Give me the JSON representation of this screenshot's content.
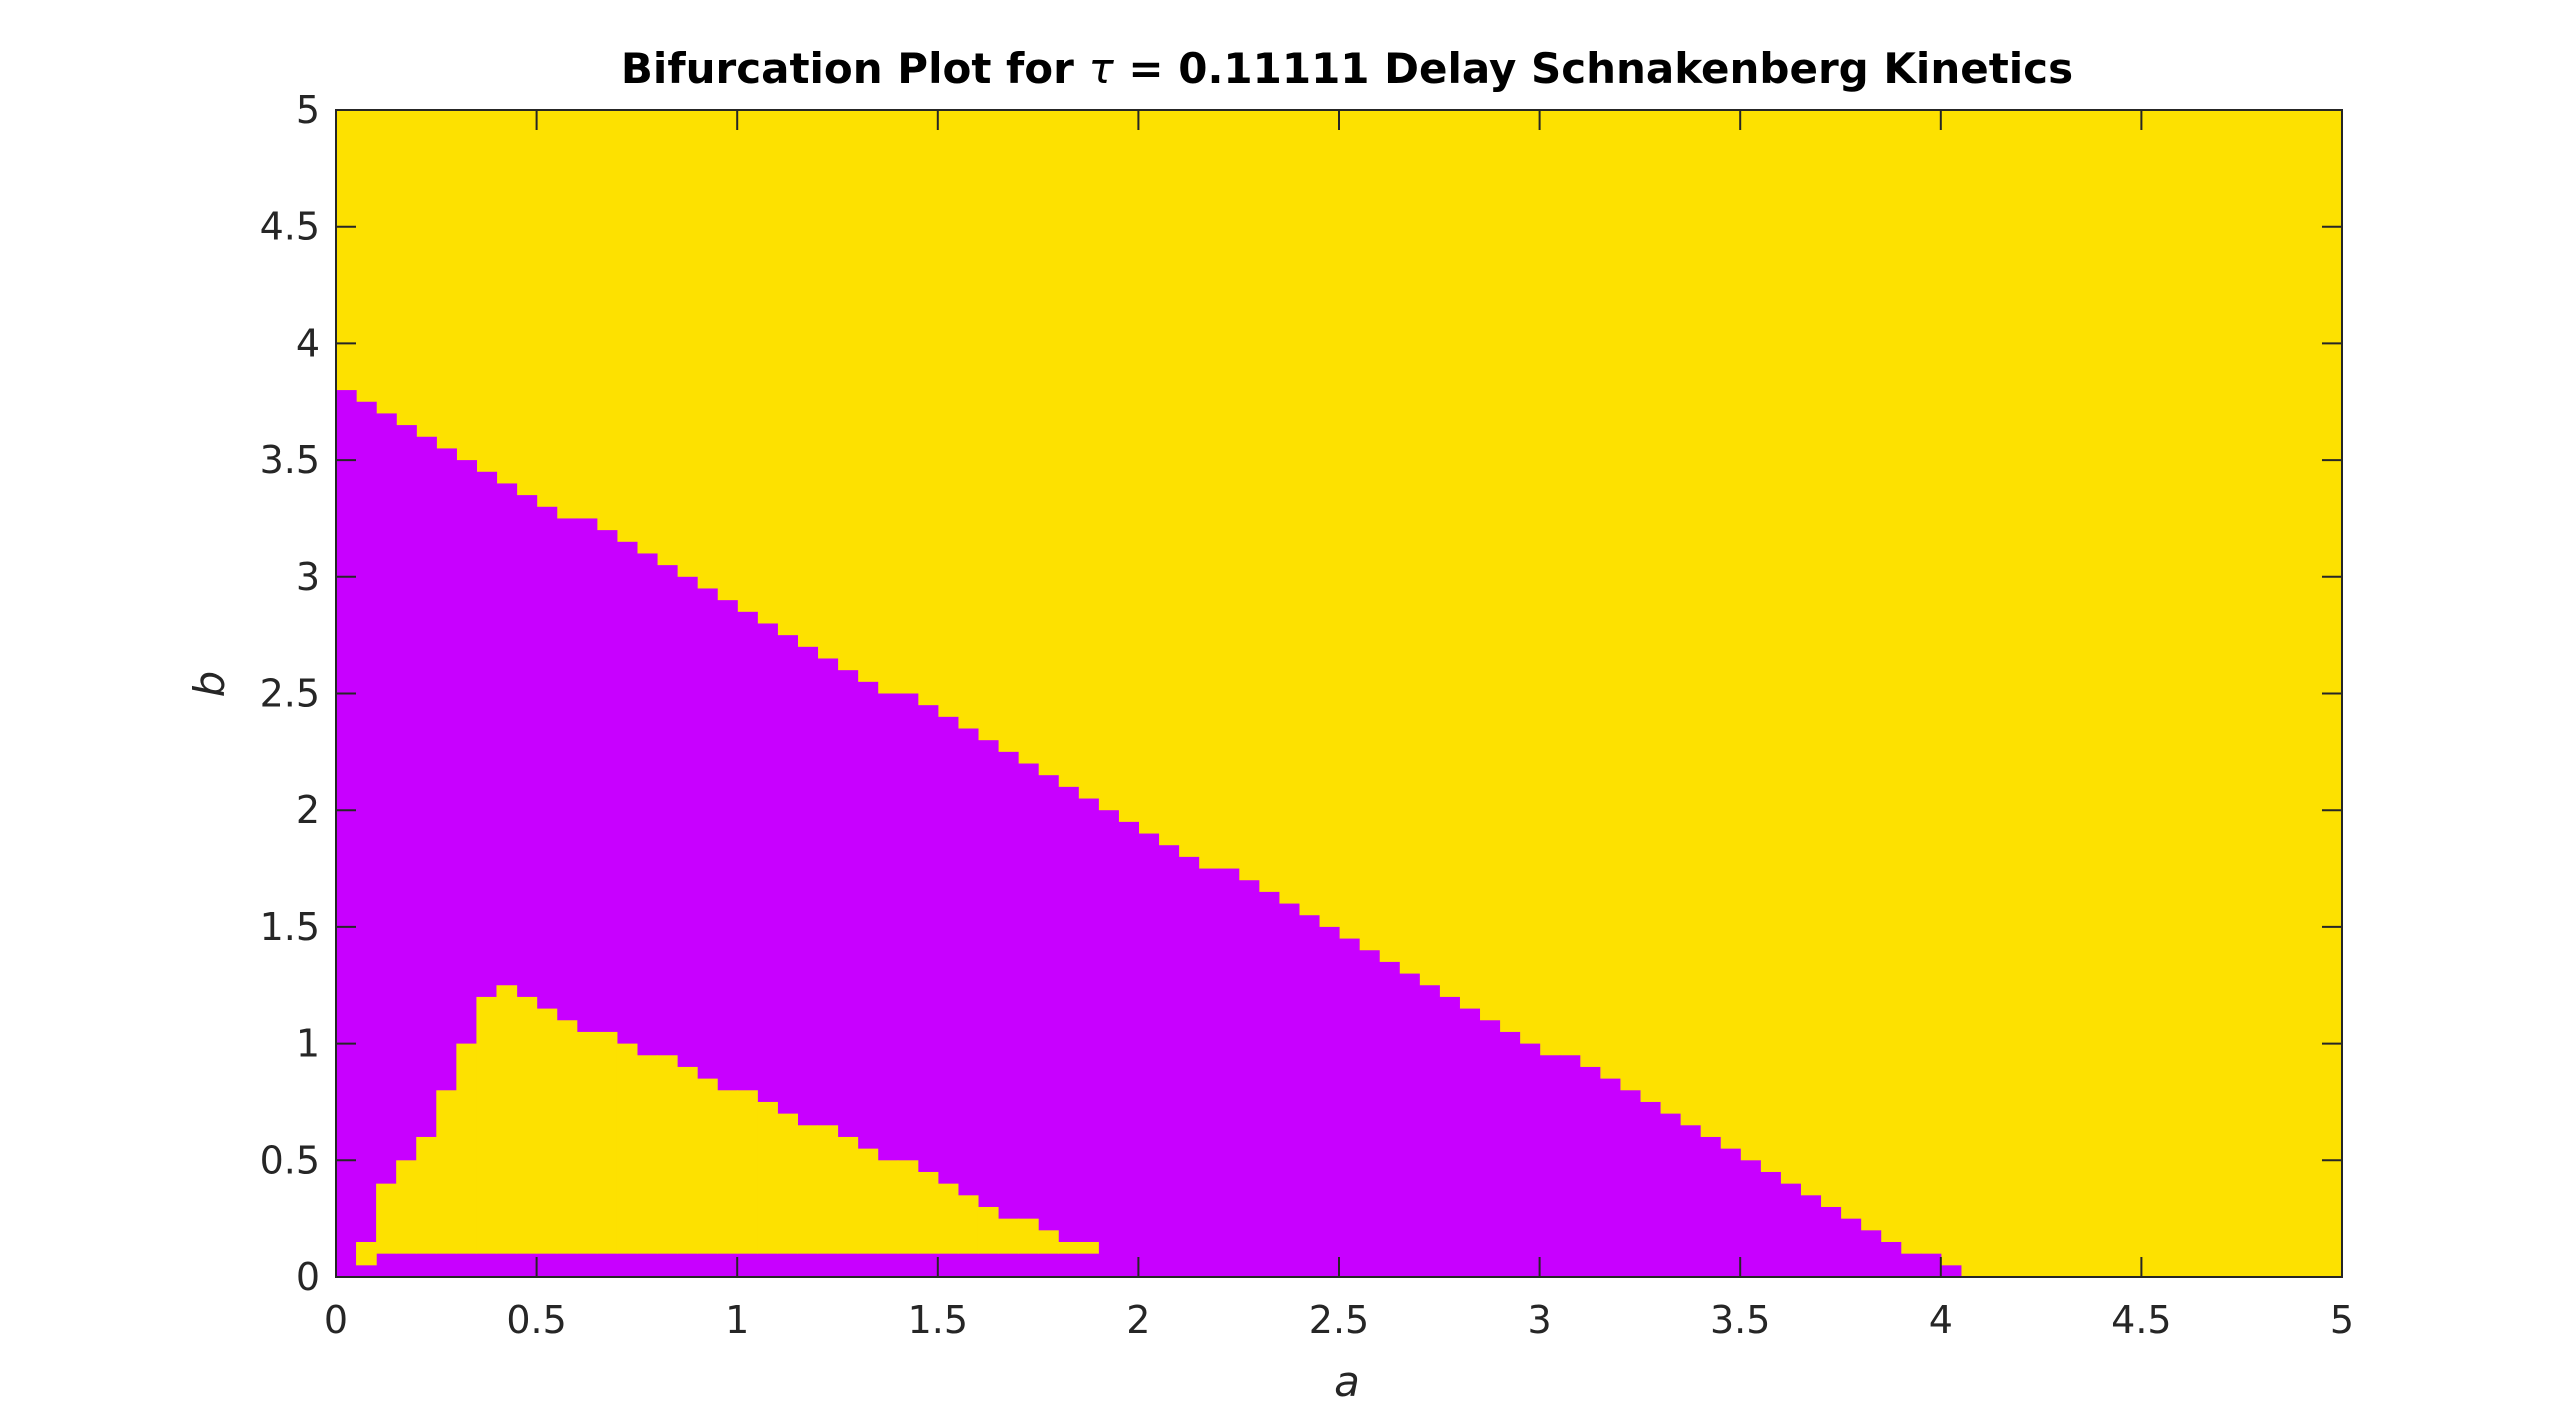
{
  "chart_data": {
    "type": "heatmap",
    "title_prefix": "Bifurcation Plot for ",
    "title_symbol": "τ",
    "title_suffix": " = 0.11111 Delay Schnakenberg Kinetics",
    "xlabel": "a",
    "ylabel": "b",
    "xlim": [
      0,
      5
    ],
    "ylim": [
      0,
      5
    ],
    "xticks": [
      "0",
      "0.5",
      "1",
      "1.5",
      "2",
      "2.5",
      "3",
      "3.5",
      "4",
      "4.5",
      "5"
    ],
    "yticks": [
      "0",
      "0.5",
      "1",
      "1.5",
      "2",
      "2.5",
      "3",
      "3.5",
      "4",
      "4.5",
      "5"
    ],
    "grid": false,
    "colors": {
      "stable": "#FDE100",
      "unstable": "#C800FF",
      "axes": "#262626"
    },
    "grid_step": 0.05,
    "upper_boundary": [
      [
        0.0,
        3.75
      ],
      [
        0.05,
        3.7
      ],
      [
        0.1,
        3.65
      ],
      [
        0.15,
        3.6
      ],
      [
        0.2,
        3.55
      ],
      [
        0.25,
        3.5
      ],
      [
        0.3,
        3.45
      ],
      [
        0.35,
        3.4
      ],
      [
        0.4,
        3.35
      ],
      [
        0.45,
        3.3
      ],
      [
        0.5,
        3.25
      ],
      [
        0.55,
        3.2
      ],
      [
        0.6,
        3.2
      ],
      [
        0.65,
        3.15
      ],
      [
        0.7,
        3.1
      ],
      [
        0.75,
        3.05
      ],
      [
        0.8,
        3.0
      ],
      [
        0.85,
        2.95
      ],
      [
        0.9,
        2.9
      ],
      [
        0.95,
        2.85
      ],
      [
        1.0,
        2.8
      ],
      [
        1.05,
        2.75
      ],
      [
        1.1,
        2.7
      ],
      [
        1.15,
        2.65
      ],
      [
        1.2,
        2.6
      ],
      [
        1.25,
        2.55
      ],
      [
        1.3,
        2.5
      ],
      [
        1.35,
        2.45
      ],
      [
        1.4,
        2.45
      ],
      [
        1.45,
        2.4
      ],
      [
        1.5,
        2.35
      ],
      [
        1.55,
        2.3
      ],
      [
        1.6,
        2.25
      ],
      [
        1.65,
        2.2
      ],
      [
        1.7,
        2.15
      ],
      [
        1.75,
        2.1
      ],
      [
        1.8,
        2.05
      ],
      [
        1.85,
        2.0
      ],
      [
        1.9,
        1.95
      ],
      [
        1.95,
        1.9
      ],
      [
        2.0,
        1.85
      ],
      [
        2.05,
        1.8
      ],
      [
        2.1,
        1.75
      ],
      [
        2.15,
        1.7
      ],
      [
        2.2,
        1.7
      ],
      [
        2.25,
        1.65
      ],
      [
        2.3,
        1.6
      ],
      [
        2.35,
        1.55
      ],
      [
        2.4,
        1.5
      ],
      [
        2.45,
        1.45
      ],
      [
        2.5,
        1.4
      ],
      [
        2.55,
        1.35
      ],
      [
        2.6,
        1.3
      ],
      [
        2.65,
        1.25
      ],
      [
        2.7,
        1.2
      ],
      [
        2.75,
        1.15
      ],
      [
        2.8,
        1.1
      ],
      [
        2.85,
        1.05
      ],
      [
        2.9,
        1.0
      ],
      [
        2.95,
        0.95
      ],
      [
        3.0,
        0.9
      ],
      [
        3.05,
        0.9
      ],
      [
        3.1,
        0.85
      ],
      [
        3.15,
        0.8
      ],
      [
        3.2,
        0.75
      ],
      [
        3.25,
        0.7
      ],
      [
        3.3,
        0.65
      ],
      [
        3.35,
        0.6
      ],
      [
        3.4,
        0.55
      ],
      [
        3.45,
        0.5
      ],
      [
        3.5,
        0.45
      ],
      [
        3.55,
        0.4
      ],
      [
        3.6,
        0.35
      ],
      [
        3.65,
        0.3
      ],
      [
        3.7,
        0.25
      ],
      [
        3.75,
        0.2
      ],
      [
        3.8,
        0.15
      ],
      [
        3.85,
        0.1
      ],
      [
        3.9,
        0.05
      ],
      [
        3.95,
        0.05
      ],
      [
        4.0,
        0.0
      ]
    ],
    "lower_region": [
      [
        0.0,
        0.0,
        0.0
      ],
      [
        0.05,
        0.05,
        0.15
      ],
      [
        0.1,
        0.1,
        0.4
      ],
      [
        0.15,
        0.1,
        0.5
      ],
      [
        0.2,
        0.1,
        0.6
      ],
      [
        0.25,
        0.1,
        0.8
      ],
      [
        0.3,
        0.1,
        1.0
      ],
      [
        0.35,
        0.1,
        1.2
      ],
      [
        0.4,
        0.1,
        1.25
      ],
      [
        0.45,
        0.1,
        1.2
      ],
      [
        0.5,
        0.1,
        1.15
      ],
      [
        0.55,
        0.1,
        1.1
      ],
      [
        0.6,
        0.1,
        1.05
      ],
      [
        0.65,
        0.1,
        1.05
      ],
      [
        0.7,
        0.1,
        1.0
      ],
      [
        0.75,
        0.1,
        0.95
      ],
      [
        0.8,
        0.1,
        0.95
      ],
      [
        0.85,
        0.1,
        0.9
      ],
      [
        0.9,
        0.1,
        0.85
      ],
      [
        0.95,
        0.1,
        0.8
      ],
      [
        1.0,
        0.1,
        0.8
      ],
      [
        1.05,
        0.1,
        0.75
      ],
      [
        1.1,
        0.1,
        0.7
      ],
      [
        1.15,
        0.1,
        0.65
      ],
      [
        1.2,
        0.1,
        0.65
      ],
      [
        1.25,
        0.1,
        0.6
      ],
      [
        1.3,
        0.1,
        0.55
      ],
      [
        1.35,
        0.1,
        0.5
      ],
      [
        1.4,
        0.1,
        0.5
      ],
      [
        1.45,
        0.1,
        0.45
      ],
      [
        1.5,
        0.1,
        0.4
      ],
      [
        1.55,
        0.1,
        0.35
      ],
      [
        1.6,
        0.1,
        0.3
      ],
      [
        1.65,
        0.1,
        0.25
      ],
      [
        1.7,
        0.1,
        0.25
      ],
      [
        1.75,
        0.1,
        0.2
      ],
      [
        1.8,
        0.1,
        0.15
      ],
      [
        1.85,
        0.1,
        0.15
      ],
      [
        1.9,
        0.1,
        0.1
      ],
      [
        1.95,
        0.1,
        0.05
      ],
      [
        2.0,
        0.1,
        0.0
      ]
    ]
  }
}
